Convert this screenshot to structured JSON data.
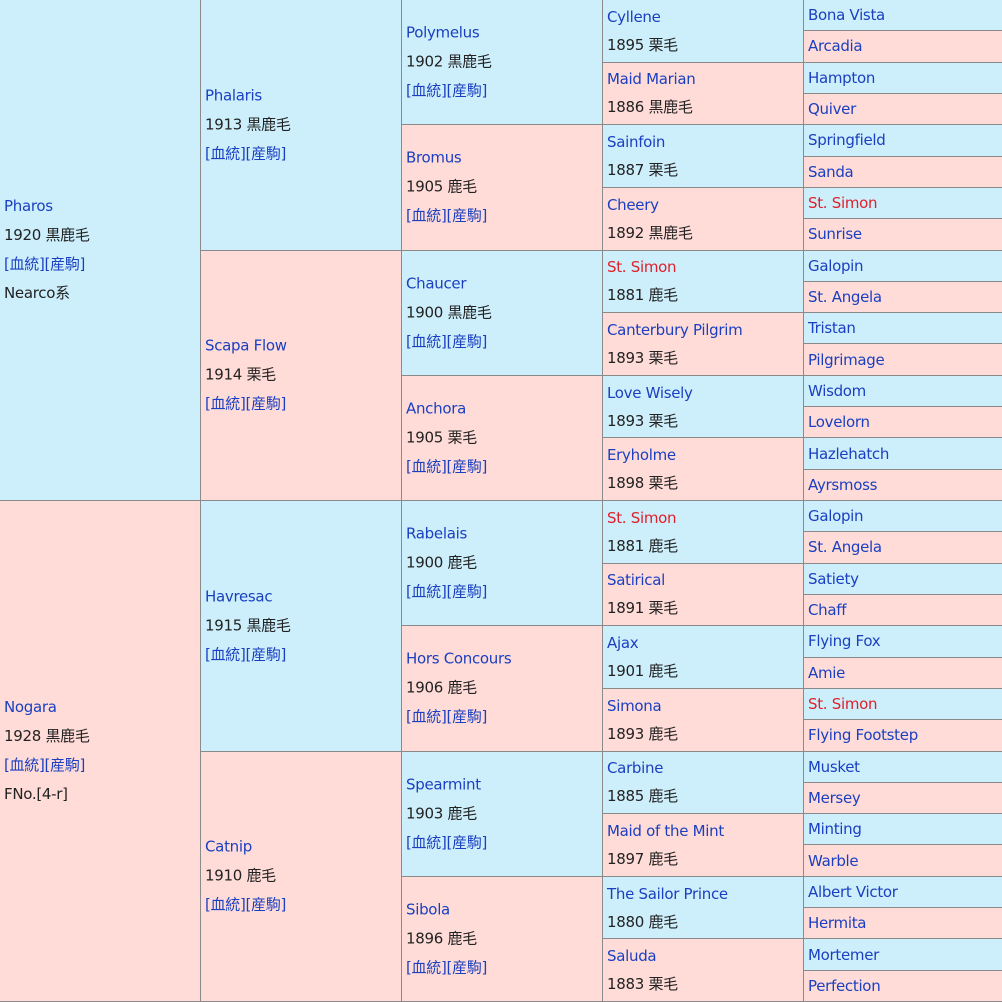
{
  "labels": {
    "pedigree_link": "[血統]",
    "offspring_link": "[産駒]"
  },
  "pedigree": {
    "sire": {
      "name": "Pharos",
      "info": "1920 黒鹿毛",
      "note": "Nearco系",
      "sire": {
        "name": "Phalaris",
        "info": "1913 黒鹿毛",
        "sire": {
          "name": "Polymelus",
          "info": "1902 黒鹿毛",
          "sire": {
            "name": "Cyllene",
            "info": "1895 栗毛",
            "sire": "Bona Vista",
            "dam": "Arcadia"
          },
          "dam": {
            "name": "Maid Marian",
            "info": "1886 黒鹿毛",
            "sire": "Hampton",
            "dam": "Quiver"
          }
        },
        "dam": {
          "name": "Bromus",
          "info": "1905 鹿毛",
          "sire": {
            "name": "Sainfoin",
            "info": "1887 栗毛",
            "sire": "Springfield",
            "dam": "Sanda"
          },
          "dam": {
            "name": "Cheery",
            "info": "1892 黒鹿毛",
            "sire": "St. Simon",
            "dam": "Sunrise"
          }
        }
      },
      "dam": {
        "name": "Scapa Flow",
        "info": "1914 栗毛",
        "sire": {
          "name": "Chaucer",
          "info": "1900 黒鹿毛",
          "sire": {
            "name": "St. Simon",
            "info": "1881 鹿毛",
            "sire": "Galopin",
            "dam": "St. Angela"
          },
          "dam": {
            "name": "Canterbury Pilgrim",
            "info": "1893 栗毛",
            "sire": "Tristan",
            "dam": "Pilgrimage"
          }
        },
        "dam": {
          "name": "Anchora",
          "info": "1905 栗毛",
          "sire": {
            "name": "Love Wisely",
            "info": "1893 栗毛",
            "sire": "Wisdom",
            "dam": "Lovelorn"
          },
          "dam": {
            "name": "Eryholme",
            "info": "1898 栗毛",
            "sire": "Hazlehatch",
            "dam": "Ayrsmoss"
          }
        }
      }
    },
    "dam": {
      "name": "Nogara",
      "info": "1928 黒鹿毛",
      "note": "FNo.[4-r]",
      "sire": {
        "name": "Havresac",
        "info": "1915 黒鹿毛",
        "sire": {
          "name": "Rabelais",
          "info": "1900 鹿毛",
          "sire": {
            "name": "St. Simon",
            "info": "1881 鹿毛",
            "sire": "Galopin",
            "dam": "St. Angela"
          },
          "dam": {
            "name": "Satirical",
            "info": "1891 栗毛",
            "sire": "Satiety",
            "dam": "Chaff"
          }
        },
        "dam": {
          "name": "Hors Concours",
          "info": "1906 鹿毛",
          "sire": {
            "name": "Ajax",
            "info": "1901 鹿毛",
            "sire": "Flying Fox",
            "dam": "Amie"
          },
          "dam": {
            "name": "Simona",
            "info": "1893 鹿毛",
            "sire": "St. Simon",
            "dam": "Flying Footstep"
          }
        }
      },
      "dam": {
        "name": "Catnip",
        "info": "1910 鹿毛",
        "sire": {
          "name": "Spearmint",
          "info": "1903 鹿毛",
          "sire": {
            "name": "Carbine",
            "info": "1885 鹿毛",
            "sire": "Musket",
            "dam": "Mersey"
          },
          "dam": {
            "name": "Maid of the Mint",
            "info": "1897 鹿毛",
            "sire": "Minting",
            "dam": "Warble"
          }
        },
        "dam": {
          "name": "Sibola",
          "info": "1896 鹿毛",
          "sire": {
            "name": "The Sailor Prince",
            "info": "1880 鹿毛",
            "sire": "Albert Victor",
            "dam": "Hermita"
          },
          "dam": {
            "name": "Saluda",
            "info": "1883 栗毛",
            "sire": "Mortemer",
            "dam": "Perfection"
          }
        }
      }
    }
  },
  "highlight": {
    "names": [
      "St. Simon"
    ],
    "color": "#e0202a"
  },
  "colors": {
    "male_bg": "#cdeffc",
    "female_bg": "#ffdcd8",
    "name": "#1a3fc0",
    "grid": "#8a8a8a"
  }
}
